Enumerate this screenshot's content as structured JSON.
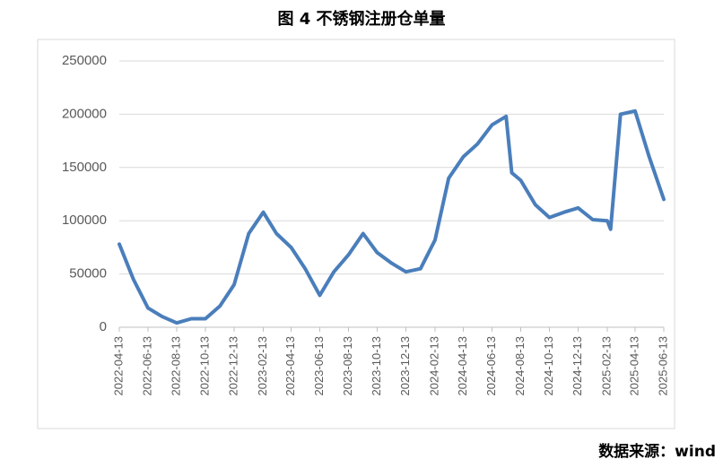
{
  "chart_data": {
    "type": "line",
    "title": "图 4  不锈钢注册仓单量",
    "source": "数据来源：wind",
    "x": [
      "2022-04-13",
      "2022-05-13",
      "2022-06-13",
      "2022-07-13",
      "2022-08-13",
      "2022-09-13",
      "2022-10-13",
      "2022-11-13",
      "2022-12-13",
      "2023-01-13",
      "2023-02-13",
      "2023-03-13",
      "2023-04-13",
      "2023-05-13",
      "2023-06-13",
      "2023-07-13",
      "2023-08-13",
      "2023-09-13",
      "2023-10-13",
      "2023-11-13",
      "2023-12-13",
      "2024-01-13",
      "2024-02-13",
      "2024-03-13",
      "2024-04-13",
      "2024-05-13",
      "2024-06-13",
      "2024-07-13",
      "2024-07-25",
      "2024-08-13",
      "2024-09-13",
      "2024-10-13",
      "2024-11-13",
      "2024-12-13",
      "2025-01-13",
      "2025-02-13",
      "2025-02-20",
      "2025-03-13",
      "2025-04-13",
      "2025-05-13",
      "2025-06-13"
    ],
    "series": [
      {
        "name": "不锈钢注册仓单量",
        "color": "#4a7ebb",
        "values": [
          78000,
          45000,
          18000,
          10000,
          4000,
          8000,
          8000,
          20000,
          40000,
          88000,
          108000,
          88000,
          75000,
          55000,
          30000,
          52000,
          68000,
          88000,
          70000,
          60000,
          52000,
          55000,
          82000,
          140000,
          160000,
          172000,
          190000,
          198000,
          145000,
          138000,
          115000,
          103000,
          108000,
          112000,
          101000,
          100000,
          92000,
          200000,
          203000,
          160000,
          120000
        ]
      }
    ],
    "xlim": [
      "2022-04-13",
      "2025-06-13"
    ],
    "xticks": [
      "2022-04-13",
      "2022-06-13",
      "2022-08-13",
      "2022-10-13",
      "2022-12-13",
      "2023-02-13",
      "2023-04-13",
      "2023-06-13",
      "2023-08-13",
      "2023-10-13",
      "2023-12-13",
      "2024-02-13",
      "2024-04-13",
      "2024-06-13",
      "2024-08-13",
      "2024-10-13",
      "2024-12-13",
      "2025-02-13",
      "2025-04-13",
      "2025-06-13"
    ],
    "ylim": [
      0,
      250000
    ],
    "yticks": [
      0,
      50000,
      100000,
      150000,
      200000,
      250000
    ],
    "grid": true
  }
}
